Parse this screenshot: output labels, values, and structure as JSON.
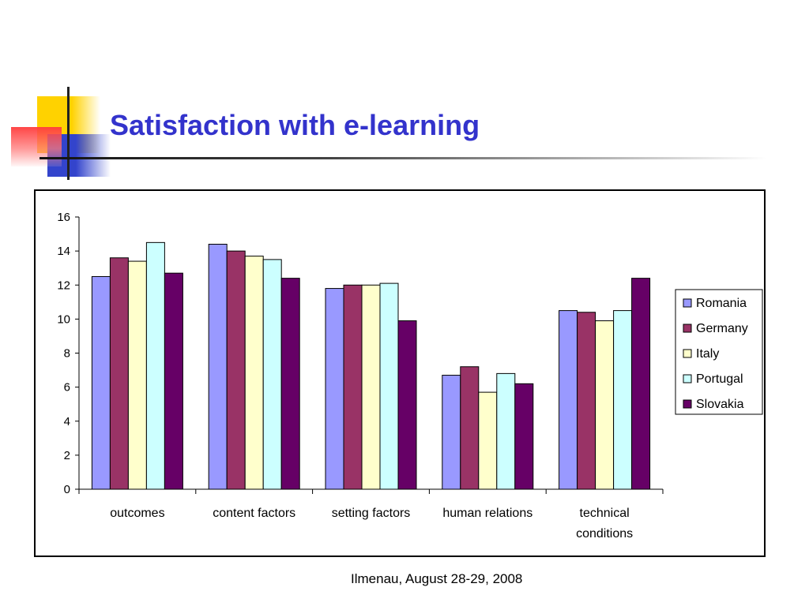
{
  "slide": {
    "title": "Satisfaction with e-learning",
    "footer": "Ilmenau, August 28-29, 2008"
  },
  "chart_data": {
    "type": "bar",
    "categories": [
      "outcomes",
      "content factors",
      "setting factors",
      "human relations",
      "technical conditions"
    ],
    "series": [
      {
        "name": "Romania",
        "color": "#9999ff",
        "values": [
          12.5,
          14.4,
          11.8,
          6.7,
          10.5
        ]
      },
      {
        "name": "Germany",
        "color": "#993366",
        "values": [
          13.6,
          14.0,
          12.0,
          7.2,
          10.4
        ]
      },
      {
        "name": "Italy",
        "color": "#ffffcc",
        "values": [
          13.4,
          13.7,
          12.0,
          5.7,
          9.9
        ]
      },
      {
        "name": "Portugal",
        "color": "#ccffff",
        "values": [
          14.5,
          13.5,
          12.1,
          6.8,
          10.5
        ]
      },
      {
        "name": "Slovakia",
        "color": "#660066",
        "values": [
          12.7,
          12.4,
          9.9,
          6.2,
          12.4
        ]
      }
    ],
    "ylim": [
      0,
      16
    ],
    "yticks": [
      0,
      2,
      4,
      6,
      8,
      10,
      12,
      14,
      16
    ],
    "grid": false,
    "legend": "right"
  }
}
